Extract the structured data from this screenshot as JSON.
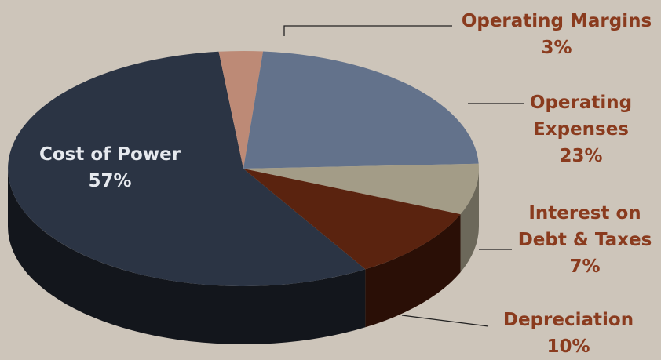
{
  "chart_data": {
    "type": "pie",
    "title": "",
    "slices": [
      {
        "label": "Cost of Power",
        "value": 57,
        "value_label": "57%",
        "color": "#2b3444",
        "side_color": "#13161c"
      },
      {
        "label": "Operating Margins",
        "value": 3,
        "value_label": "3%",
        "color": "#bd8a76",
        "side_color": "#6d4c40"
      },
      {
        "label": "Operating Expenses",
        "value": 23,
        "value_label": "23%",
        "color": "#63728b",
        "side_color": "#39414f"
      },
      {
        "label": "Interest on Debt & Taxes",
        "value": 7,
        "value_label": "7%",
        "color": "#a39c87",
        "side_color": "#6c685a"
      },
      {
        "label": "Depreciation",
        "value": 10,
        "value_label": "10%",
        "color": "#5a230f",
        "side_color": "#2a0f06"
      }
    ],
    "legend": "none",
    "label_color": "#8a3b1e",
    "inside_label_color": "#e6e9ee",
    "background": "#cdc5ba"
  }
}
